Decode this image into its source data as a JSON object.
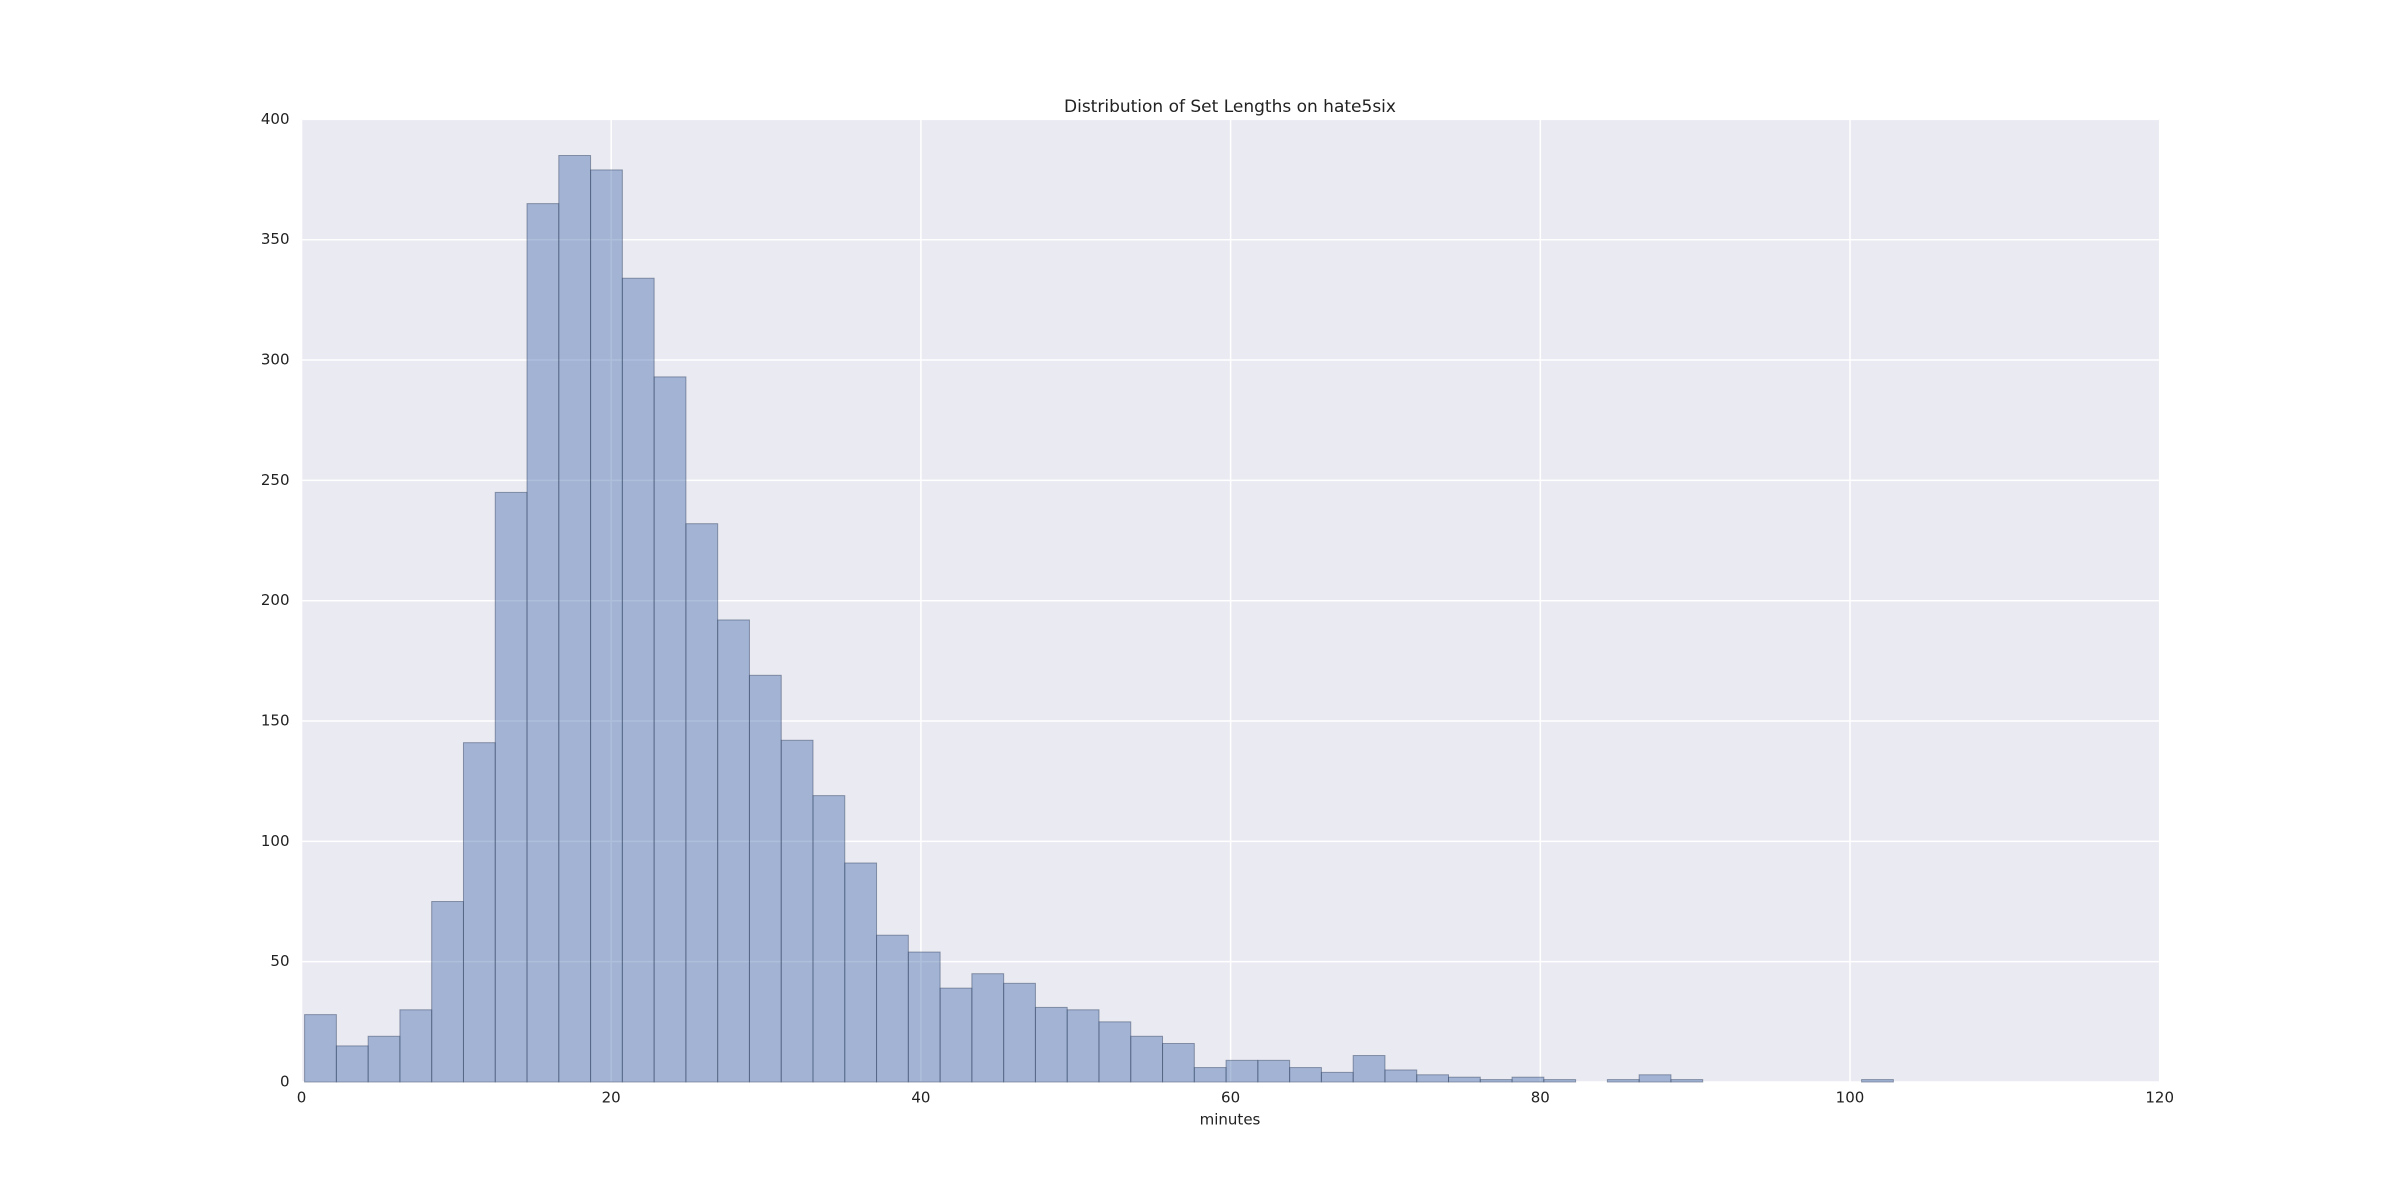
{
  "chart_data": {
    "type": "histogram",
    "title": "Distribution of Set Lengths on hate5six",
    "xlabel": "minutes",
    "bins": [
      0.2,
      2.252,
      4.304,
      6.356,
      8.408,
      10.46,
      12.512,
      14.564,
      16.616,
      18.668,
      20.72,
      22.772,
      24.824,
      26.876,
      28.928,
      30.98,
      33.032,
      35.084,
      37.136,
      39.188,
      41.24,
      43.292,
      45.344,
      47.396,
      49.448,
      51.5,
      53.552,
      55.604,
      57.656,
      59.708,
      61.76,
      63.812,
      65.864,
      67.916,
      69.968,
      72.02,
      74.072,
      76.124,
      78.176,
      80.228,
      82.28,
      84.332,
      86.384,
      88.436,
      90.488,
      92.54,
      94.592,
      96.644,
      98.696,
      100.748,
      102.8
    ],
    "values": [
      28,
      15,
      19,
      30,
      75,
      141,
      245,
      365,
      385,
      379,
      334,
      293,
      232,
      192,
      169,
      142,
      119,
      91,
      61,
      54,
      39,
      45,
      41,
      31,
      30,
      25,
      19,
      16,
      6,
      9,
      9,
      6,
      4,
      11,
      5,
      3,
      2,
      1,
      2,
      1,
      0,
      1,
      3,
      1,
      0,
      0,
      0,
      0,
      0,
      1
    ],
    "color": "#4c72b0",
    "xlim": [
      0,
      120
    ],
    "xticks": [
      0,
      20,
      40,
      60,
      80,
      100,
      120
    ],
    "ylim": [
      0,
      400
    ],
    "yticks": [
      0,
      50,
      100,
      150,
      200,
      250,
      300,
      350,
      400
    ],
    "grid": true
  }
}
